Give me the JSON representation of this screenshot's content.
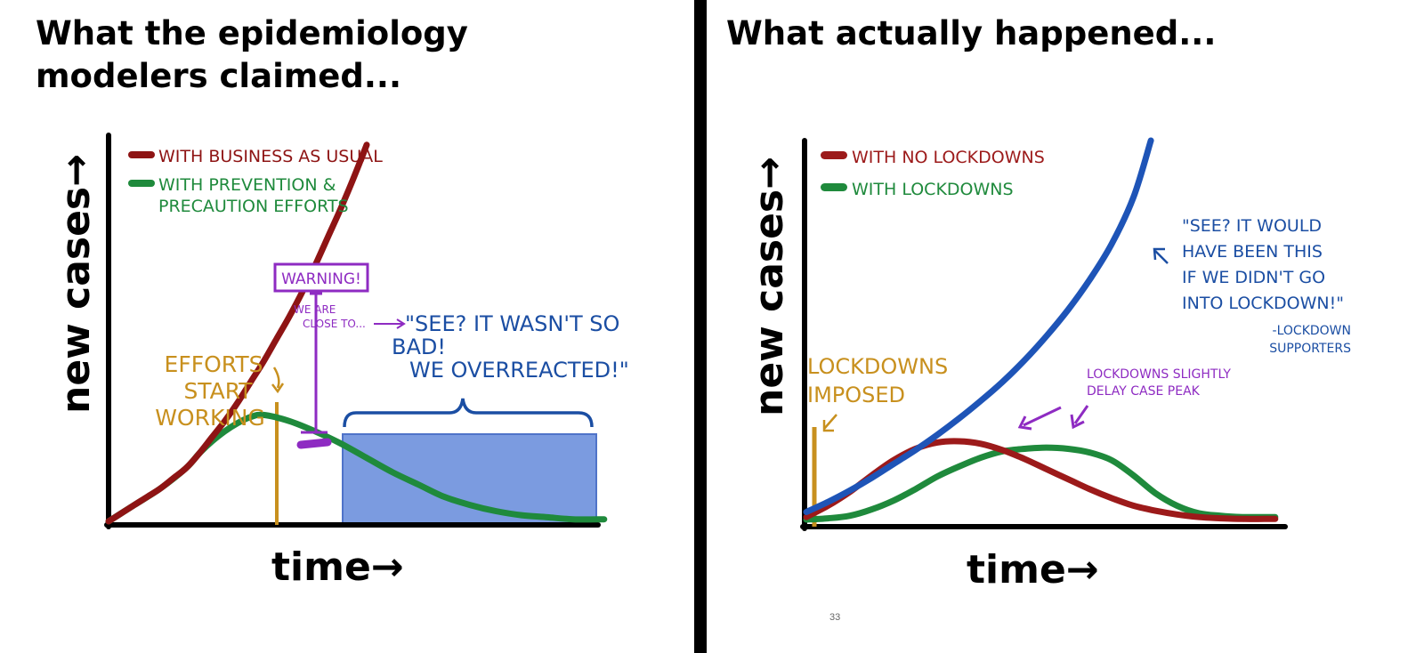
{
  "left": {
    "heading": [
      "What the epidemiology",
      "modelers claimed..."
    ],
    "chart_data": {
      "type": "line",
      "xlabel": "time→",
      "ylabel": "new cases→",
      "series": [
        {
          "name": "WITH BUSINESS AS USUAL",
          "color": "#8e1414",
          "x": [
            0,
            5,
            10,
            15,
            20,
            25,
            30,
            35,
            40,
            45,
            50,
            55,
            60,
            65,
            70,
            75,
            80,
            85,
            90,
            95,
            100
          ],
          "y": [
            0,
            4,
            8,
            12,
            16,
            21,
            26,
            33,
            41,
            49,
            58,
            68,
            78,
            89,
            100,
            112,
            125,
            139,
            153,
            168,
            184
          ]
        },
        {
          "name": "WITH PREVENTION & PRECAUTION EFFORTS",
          "color": "#1f8a3c",
          "x": [
            0,
            10,
            20,
            30,
            35,
            40,
            45,
            50,
            55,
            60,
            70,
            80,
            90,
            100,
            110,
            120,
            130,
            140,
            150,
            160,
            170,
            180,
            192
          ],
          "y": [
            0,
            8,
            16,
            26,
            33,
            39,
            44,
            48,
            51,
            52,
            49,
            44,
            38,
            31,
            24,
            18,
            12,
            8,
            5,
            3,
            2,
            1,
            1
          ]
        }
      ],
      "annotations": {
        "efforts": [
          "EFFORTS",
          "START",
          "WORKING"
        ],
        "warning": "WARNING!",
        "close_to": [
          "WE ARE",
          "CLOSE TO..."
        ],
        "quote": [
          "\"SEE? IT WASN'T SO",
          "BAD!",
          "WE OVERREACTED!\""
        ]
      },
      "colors": {
        "efforts": "#c8901e",
        "warning": "#8e2bc2",
        "quote": "#1b4ea3",
        "shade": "#7b9be0"
      }
    }
  },
  "right": {
    "heading": [
      "What actually happened..."
    ],
    "chart_data": {
      "type": "line",
      "xlabel": "time→",
      "ylabel": "new cases→",
      "series": [
        {
          "name": "WITH NO LOCKDOWNS",
          "color": "#9c1a1a",
          "x": [
            0,
            10,
            20,
            30,
            40,
            50,
            60,
            70,
            80,
            90,
            100,
            110,
            120,
            130,
            140,
            150,
            160,
            170,
            180,
            190,
            200,
            210,
            215
          ],
          "y": [
            2,
            11,
            22,
            35,
            47,
            56,
            61,
            62,
            60,
            55,
            48,
            40,
            32,
            24,
            17,
            11,
            7,
            4,
            2,
            1,
            0.5,
            0.5,
            0.5
          ]
        },
        {
          "name": "WITH LOCKDOWNS",
          "color": "#1f8a3c",
          "x": [
            0,
            10,
            20,
            30,
            40,
            50,
            60,
            70,
            80,
            90,
            100,
            110,
            120,
            130,
            140,
            150,
            160,
            170,
            180,
            190,
            200,
            210,
            215
          ],
          "y": [
            0,
            1,
            3,
            8,
            15,
            24,
            34,
            42,
            49,
            54,
            56,
            57,
            56,
            53,
            47,
            35,
            21,
            11,
            5,
            3,
            2,
            2,
            2
          ]
        },
        {
          "name": "",
          "color": "#1e54b7",
          "x": [
            0,
            10,
            20,
            30,
            40,
            50,
            60,
            70,
            80,
            90,
            100,
            110,
            120,
            130,
            140,
            150,
            158
          ],
          "y": [
            6,
            14,
            23,
            33,
            44,
            55,
            67,
            80,
            94,
            109,
            126,
            145,
            166,
            190,
            218,
            255,
            300
          ]
        }
      ],
      "annotations": {
        "lockdowns_imposed": [
          "LOCKDOWNS",
          "IMPOSED"
        ],
        "delay": [
          "LOCKDOWNS SLIGHTLY",
          "DELAY CASE PEAK"
        ],
        "quote": [
          "\"SEE? IT WOULD",
          "HAVE BEEN THIS",
          "IF WE DIDN'T GO",
          "INTO LOCKDOWN!\""
        ],
        "attribution": [
          "-LOCKDOWN",
          "SUPPORTERS"
        ]
      },
      "colors": {
        "imposed": "#c8901e",
        "delay": "#8e2bc2",
        "quote": "#1b4ea3"
      }
    },
    "page_number": "33"
  }
}
